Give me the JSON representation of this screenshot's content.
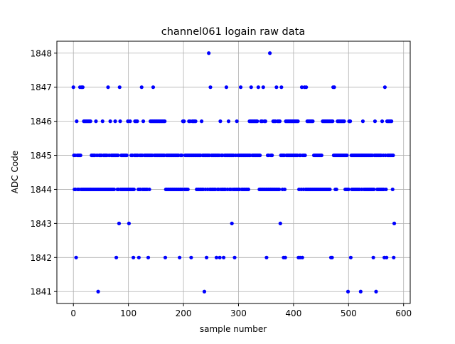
{
  "chart_data": {
    "type": "scatter",
    "title": "channel061 logain raw data",
    "xlabel": "sample number",
    "ylabel": "ADC Code",
    "xlim": [
      -30,
      612
    ],
    "ylim": [
      1840.65,
      1848.35
    ],
    "xticks": [
      0,
      100,
      200,
      300,
      400,
      500,
      600
    ],
    "yticks": [
      1841,
      1842,
      1843,
      1844,
      1845,
      1846,
      1847,
      1848
    ],
    "grid": true,
    "marker_color": "#0000ff",
    "n_samples": 583,
    "levels": [
      {
        "value": 1848,
        "x": [
          246,
          357
        ]
      },
      {
        "value": 1847,
        "x": [
          0,
          12,
          15,
          17,
          63,
          84,
          124,
          145,
          249,
          278,
          304,
          323,
          336,
          345,
          369,
          378,
          415,
          420,
          423,
          472,
          474,
          566
        ]
      },
      {
        "value": 1843,
        "x": [
          83,
          101,
          288,
          376,
          583
        ]
      },
      {
        "value": 1842,
        "x": [
          5,
          78,
          109,
          119,
          136,
          167,
          193,
          214,
          242,
          260,
          266,
          273,
          278,
          293,
          351,
          382,
          385,
          409,
          412,
          416,
          420,
          468,
          470,
          504,
          545,
          565,
          569,
          582
        ]
      },
      {
        "value": 1841,
        "x": [
          45,
          238,
          499,
          522,
          550
        ]
      },
      {
        "value": 1846,
        "x": [
          0,
          6,
          41,
          53,
          67,
          76,
          85,
          127,
          233,
          267,
          282,
          297,
          526,
          548,
          561
        ],
        "x_ranges": [
          [
            15,
            32,
            2
          ],
          [
            99,
            103,
            2
          ],
          [
            112,
            116,
            2
          ],
          [
            140,
            166,
            2
          ],
          [
            199,
            201,
            1
          ],
          [
            210,
            222,
            2
          ],
          [
            320,
            337,
            2
          ],
          [
            341,
            350,
            2
          ],
          [
            363,
            376,
            2
          ],
          [
            386,
            408,
            2
          ],
          [
            425,
            435,
            2
          ],
          [
            453,
            472,
            2
          ],
          [
            480,
            492,
            2
          ],
          [
            501,
            504,
            1
          ],
          [
            570,
            579,
            2
          ]
        ]
      },
      {
        "value": 1845,
        "x_ranges": [
          [
            1,
            582,
            2
          ]
        ]
      },
      {
        "value": 1844,
        "fill_remaining": true
      }
    ]
  }
}
